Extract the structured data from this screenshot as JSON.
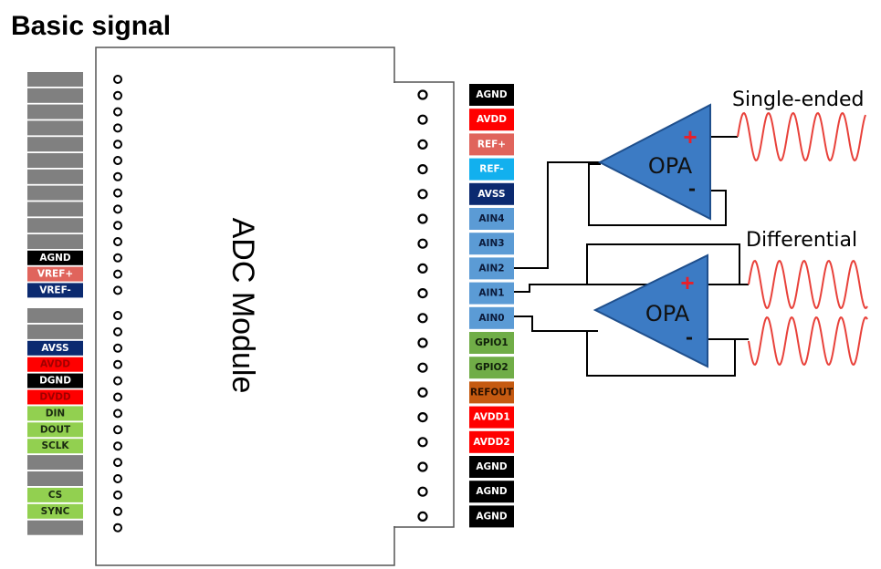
{
  "title": "Basic signal",
  "module_label": "ADC Module",
  "left_pins": [
    {
      "label": "",
      "bg": "#808080",
      "fg": "#fff"
    },
    {
      "label": "",
      "bg": "#808080",
      "fg": "#fff"
    },
    {
      "label": "",
      "bg": "#808080",
      "fg": "#fff"
    },
    {
      "label": "",
      "bg": "#808080",
      "fg": "#fff"
    },
    {
      "label": "",
      "bg": "#808080",
      "fg": "#fff"
    },
    {
      "label": "",
      "bg": "#808080",
      "fg": "#fff"
    },
    {
      "label": "",
      "bg": "#808080",
      "fg": "#fff"
    },
    {
      "label": "",
      "bg": "#808080",
      "fg": "#fff"
    },
    {
      "label": "",
      "bg": "#808080",
      "fg": "#fff"
    },
    {
      "label": "",
      "bg": "#808080",
      "fg": "#fff"
    },
    {
      "label": "",
      "bg": "#808080",
      "fg": "#fff"
    },
    {
      "label": "AGND",
      "bg": "#000000",
      "fg": "#ffffff"
    },
    {
      "label": "VREF+",
      "bg": "#e0645c",
      "fg": "#ffffff"
    },
    {
      "label": "VREF-",
      "bg": "#0b2a70",
      "fg": "#ffffff"
    },
    {
      "label": "",
      "bg": "#808080",
      "fg": "#fff"
    },
    {
      "label": "",
      "bg": "#808080",
      "fg": "#fff"
    },
    {
      "label": "AVSS",
      "bg": "#0b2a70",
      "fg": "#ffffff"
    },
    {
      "label": "AVDD",
      "bg": "#ff0000",
      "fg": "#a00000"
    },
    {
      "label": "DGND",
      "bg": "#000000",
      "fg": "#ffffff"
    },
    {
      "label": "DVDD",
      "bg": "#ff0000",
      "fg": "#a00000"
    },
    {
      "label": "DIN",
      "bg": "#92d050",
      "fg": "#1a2a10"
    },
    {
      "label": "DOUT",
      "bg": "#92d050",
      "fg": "#1a2a10"
    },
    {
      "label": "SCLK",
      "bg": "#92d050",
      "fg": "#1a2a10"
    },
    {
      "label": "",
      "bg": "#808080",
      "fg": "#fff"
    },
    {
      "label": "",
      "bg": "#808080",
      "fg": "#fff"
    },
    {
      "label": "CS",
      "bg": "#92d050",
      "fg": "#1a2a10"
    },
    {
      "label": "SYNC",
      "bg": "#92d050",
      "fg": "#1a2a10"
    },
    {
      "label": "",
      "bg": "#808080",
      "fg": "#fff"
    }
  ],
  "right_pins": [
    {
      "label": "AGND",
      "bg": "#000000",
      "fg": "#ffffff"
    },
    {
      "label": "AVDD",
      "bg": "#ff0000",
      "fg": "#ffffff"
    },
    {
      "label": "REF+",
      "bg": "#e0645c",
      "fg": "#ffffff"
    },
    {
      "label": "REF-",
      "bg": "#12b0ee",
      "fg": "#ffffff"
    },
    {
      "label": "AVSS",
      "bg": "#0b2a70",
      "fg": "#ffffff"
    },
    {
      "label": "AIN4",
      "bg": "#5b9bd5",
      "fg": "#0b1a3a"
    },
    {
      "label": "AIN3",
      "bg": "#5b9bd5",
      "fg": "#0b1a3a"
    },
    {
      "label": "AIN2",
      "bg": "#5b9bd5",
      "fg": "#0b1a3a"
    },
    {
      "label": "AIN1",
      "bg": "#5b9bd5",
      "fg": "#0b1a3a"
    },
    {
      "label": "AIN0",
      "bg": "#5b9bd5",
      "fg": "#0b1a3a"
    },
    {
      "label": "GPIO1",
      "bg": "#70ad47",
      "fg": "#10200a"
    },
    {
      "label": "GPIO2",
      "bg": "#70ad47",
      "fg": "#10200a"
    },
    {
      "label": "REFOUT",
      "bg": "#c55a11",
      "fg": "#2a1000"
    },
    {
      "label": "AVDD1",
      "bg": "#ff0000",
      "fg": "#ffffff"
    },
    {
      "label": "AVDD2",
      "bg": "#ff0000",
      "fg": "#ffffff"
    },
    {
      "label": "AGND",
      "bg": "#000000",
      "fg": "#ffffff"
    },
    {
      "label": "AGND",
      "bg": "#000000",
      "fg": "#ffffff"
    },
    {
      "label": "AGND",
      "bg": "#000000",
      "fg": "#ffffff"
    }
  ],
  "amplifiers": [
    {
      "label": "OPA",
      "plus": "+",
      "minus": "-"
    },
    {
      "label": "OPA",
      "plus": "+",
      "minus": "-"
    }
  ],
  "signals": {
    "single_ended": "Single-ended",
    "differential": "Differential"
  },
  "colors": {
    "opa_fill": "#3c7bc4",
    "opa_stroke": "#1f4f8c",
    "wave": "#e8413a",
    "wire": "#000000",
    "plus": "#e8202a"
  }
}
